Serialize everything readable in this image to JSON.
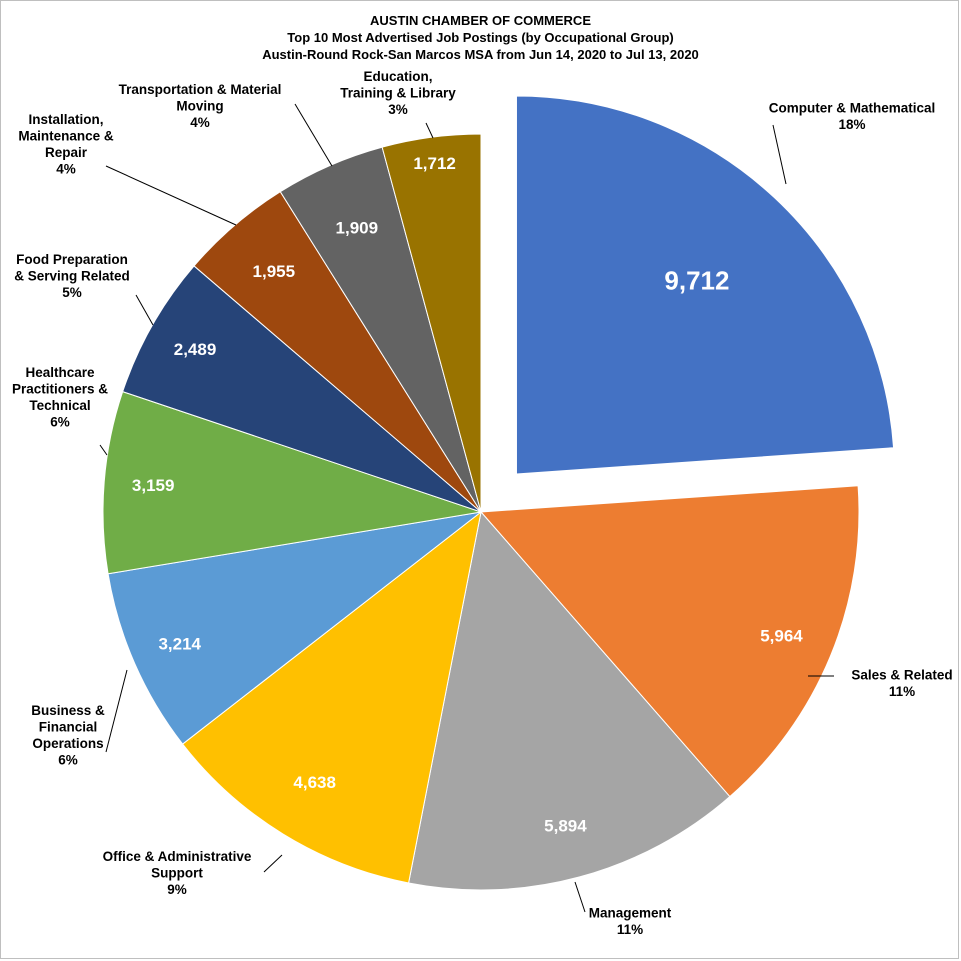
{
  "title_lines": [
    "AUSTIN CHAMBER OF COMMERCE",
    "Top 10 Most Advertised Job Postings (by Occupational Group)",
    "Austin-Round Rock-San Marcos MSA from Jun 14, 2020 to Jul 13, 2020"
  ],
  "chart_data": {
    "type": "pie",
    "title": "AUSTIN CHAMBER OF COMMERCE / Top 10 Most Advertised Job Postings (by Occupational Group) / Austin-Round Rock-San Marcos MSA from Jun 14, 2020 to Jul 13, 2020",
    "start_angle_deg": 0,
    "direction": "clockwise",
    "exploded": "Computer & Mathematical",
    "legend": "none",
    "slices": [
      {
        "label_lines": [
          "Computer & Mathematical"
        ],
        "value": 9712,
        "value_label": "9,712",
        "percent_label": "18%",
        "color": "#4472C4"
      },
      {
        "label_lines": [
          "Sales & Related"
        ],
        "value": 5964,
        "value_label": "5,964",
        "percent_label": "11%",
        "color": "#ED7D31"
      },
      {
        "label_lines": [
          "Management"
        ],
        "value": 5894,
        "value_label": "5,894",
        "percent_label": "11%",
        "color": "#A5A5A5"
      },
      {
        "label_lines": [
          "Office & Administrative",
          "Support"
        ],
        "value": 4638,
        "value_label": "4,638",
        "percent_label": "9%",
        "color": "#FFC000"
      },
      {
        "label_lines": [
          "Business &",
          "Financial",
          "Operations"
        ],
        "value": 3214,
        "value_label": "3,214",
        "percent_label": "6%",
        "color": "#5B9BD5"
      },
      {
        "label_lines": [
          "Healthcare",
          "Practitioners &",
          "Technical"
        ],
        "value": 3159,
        "value_label": "3,159",
        "percent_label": "6%",
        "color": "#70AD47"
      },
      {
        "label_lines": [
          "Food Preparation",
          "& Serving Related"
        ],
        "value": 2489,
        "value_label": "2,489",
        "percent_label": "5%",
        "color": "#264478"
      },
      {
        "label_lines": [
          "Installation,",
          "Maintenance &",
          "Repair"
        ],
        "value": 1955,
        "value_label": "1,955",
        "percent_label": "4%",
        "color": "#9E480E"
      },
      {
        "label_lines": [
          "Transportation & Material",
          "Moving"
        ],
        "value": 1909,
        "value_label": "1,909",
        "percent_label": "4%",
        "color": "#636363"
      },
      {
        "label_lines": [
          "Education,",
          "Training & Library"
        ],
        "value": 1712,
        "value_label": "1,712",
        "percent_label": "3%",
        "color": "#997300"
      }
    ]
  }
}
